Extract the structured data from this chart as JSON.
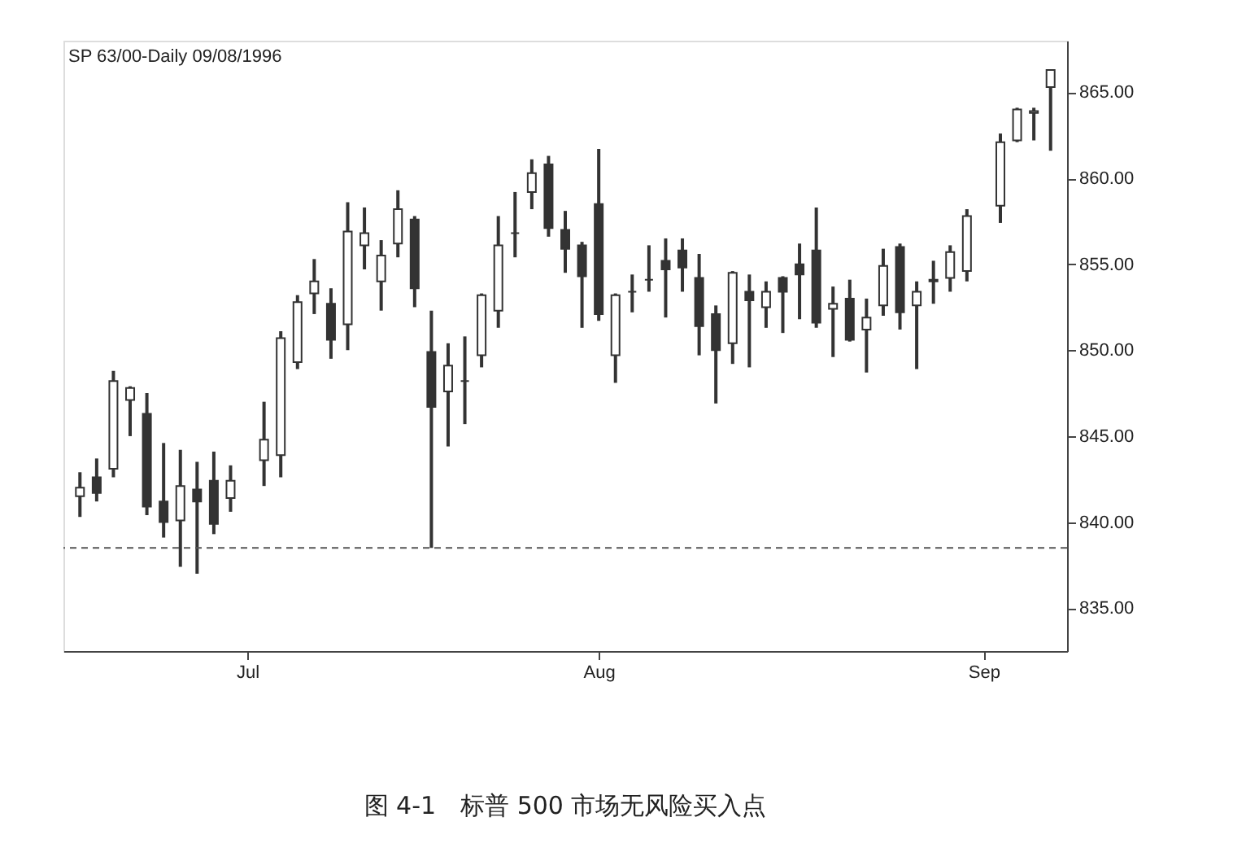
{
  "chart_data": {
    "type": "candlestick",
    "title": "SP 63/00-Daily  09/08/1996",
    "annotations": [
      "图 4-1　标普 500 市场无风险买入点"
    ],
    "categories": [
      null,
      null,
      null,
      null,
      null,
      null,
      null,
      null,
      null,
      null,
      "Jul",
      null,
      null,
      null,
      null,
      null,
      null,
      null,
      null,
      null,
      null,
      null,
      null,
      null,
      null,
      null,
      null,
      null,
      null,
      null,
      null,
      "Aug",
      null,
      null,
      null,
      null,
      null,
      null,
      null,
      null,
      null,
      null,
      null,
      null,
      null,
      null,
      null,
      null,
      null,
      null,
      null,
      null,
      null,
      null,
      "Sep",
      null,
      null,
      null,
      null
    ],
    "ohlc": [
      [
        841.5,
        842.9,
        840.3,
        842.0
      ],
      [
        842.6,
        843.7,
        841.2,
        841.7
      ],
      [
        843.1,
        848.8,
        842.6,
        848.2
      ],
      [
        847.1,
        847.9,
        845.0,
        847.8
      ],
      [
        846.3,
        847.5,
        840.4,
        840.9
      ],
      [
        841.2,
        844.6,
        839.1,
        840.0
      ],
      [
        840.1,
        844.2,
        837.4,
        842.1
      ],
      [
        841.9,
        843.5,
        837.0,
        841.2
      ],
      [
        842.4,
        844.1,
        839.3,
        839.9
      ],
      [
        841.4,
        843.3,
        840.6,
        842.4
      ],
      null,
      [
        843.6,
        847.0,
        842.1,
        844.8
      ],
      [
        843.9,
        851.1,
        842.6,
        850.7
      ],
      [
        849.3,
        853.2,
        848.9,
        852.8
      ],
      [
        853.3,
        855.3,
        852.1,
        854.0
      ],
      [
        852.7,
        853.6,
        849.5,
        850.6
      ],
      [
        851.5,
        858.6,
        850.0,
        856.9
      ],
      [
        856.1,
        858.3,
        854.7,
        856.8
      ],
      [
        854.0,
        856.4,
        852.3,
        855.5
      ],
      [
        856.2,
        859.3,
        855.4,
        858.2
      ],
      [
        857.6,
        857.8,
        852.5,
        853.6
      ],
      [
        849.9,
        852.3,
        838.5,
        846.7
      ],
      [
        847.6,
        850.4,
        844.4,
        849.1
      ],
      [
        848.2,
        850.8,
        845.7,
        848.2
      ],
      [
        849.7,
        853.3,
        849.0,
        853.2
      ],
      [
        852.3,
        857.8,
        851.3,
        856.1
      ],
      [
        856.8,
        859.2,
        855.4,
        856.8
      ],
      [
        859.2,
        861.1,
        858.2,
        860.3
      ],
      [
        860.8,
        861.3,
        856.6,
        857.1
      ],
      [
        857.0,
        858.1,
        854.5,
        855.9
      ],
      [
        856.1,
        856.3,
        851.3,
        854.3
      ],
      [
        858.5,
        861.7,
        851.7,
        852.1
      ],
      [
        849.7,
        853.3,
        848.1,
        853.2
      ],
      [
        853.4,
        854.4,
        852.2,
        853.4
      ],
      [
        854.1,
        856.1,
        853.4,
        854.1
      ],
      [
        855.2,
        856.5,
        851.9,
        854.7
      ],
      [
        855.8,
        856.5,
        853.4,
        854.8
      ],
      [
        854.2,
        855.6,
        849.7,
        851.4
      ],
      [
        852.1,
        852.6,
        846.9,
        850.0
      ],
      [
        850.4,
        854.6,
        849.2,
        854.5
      ],
      [
        853.4,
        854.4,
        849.0,
        852.9
      ],
      [
        852.5,
        854.0,
        851.3,
        853.4
      ],
      [
        854.2,
        854.3,
        851.0,
        853.4
      ],
      [
        855.0,
        856.2,
        851.8,
        854.4
      ],
      [
        855.8,
        858.3,
        851.3,
        851.6
      ],
      [
        852.4,
        853.7,
        849.6,
        852.7
      ],
      [
        853.0,
        854.1,
        850.5,
        850.6
      ],
      [
        851.2,
        853.0,
        848.7,
        851.9
      ],
      [
        852.6,
        855.9,
        852.0,
        854.9
      ],
      [
        856.0,
        856.2,
        851.2,
        852.2
      ],
      [
        852.6,
        854.0,
        848.9,
        853.4
      ],
      [
        854.1,
        855.2,
        852.7,
        854.0
      ],
      [
        854.2,
        856.1,
        853.4,
        855.7
      ],
      [
        854.6,
        858.2,
        854.0,
        857.8
      ],
      null,
      [
        858.4,
        862.6,
        857.4,
        862.1
      ],
      [
        862.2,
        864.1,
        862.1,
        864.0
      ],
      [
        863.8,
        864.1,
        862.2,
        863.9
      ],
      [
        865.3,
        866.3,
        861.6,
        866.3
      ]
    ],
    "ylim": [
      832.5,
      868
    ],
    "yticks": [
      {
        "value": 835,
        "label": "835.00"
      },
      {
        "value": 840,
        "label": "840.00"
      },
      {
        "value": 845,
        "label": "845.00"
      },
      {
        "value": 850,
        "label": "850.00"
      },
      {
        "value": 855,
        "label": "855.00"
      },
      {
        "value": 860,
        "label": "860.00"
      },
      {
        "value": 865,
        "label": "865.00"
      }
    ],
    "ref_lines": [
      {
        "axis": "y",
        "value": 838.5,
        "line_style": "dashed",
        "color": "#555555"
      }
    ]
  }
}
